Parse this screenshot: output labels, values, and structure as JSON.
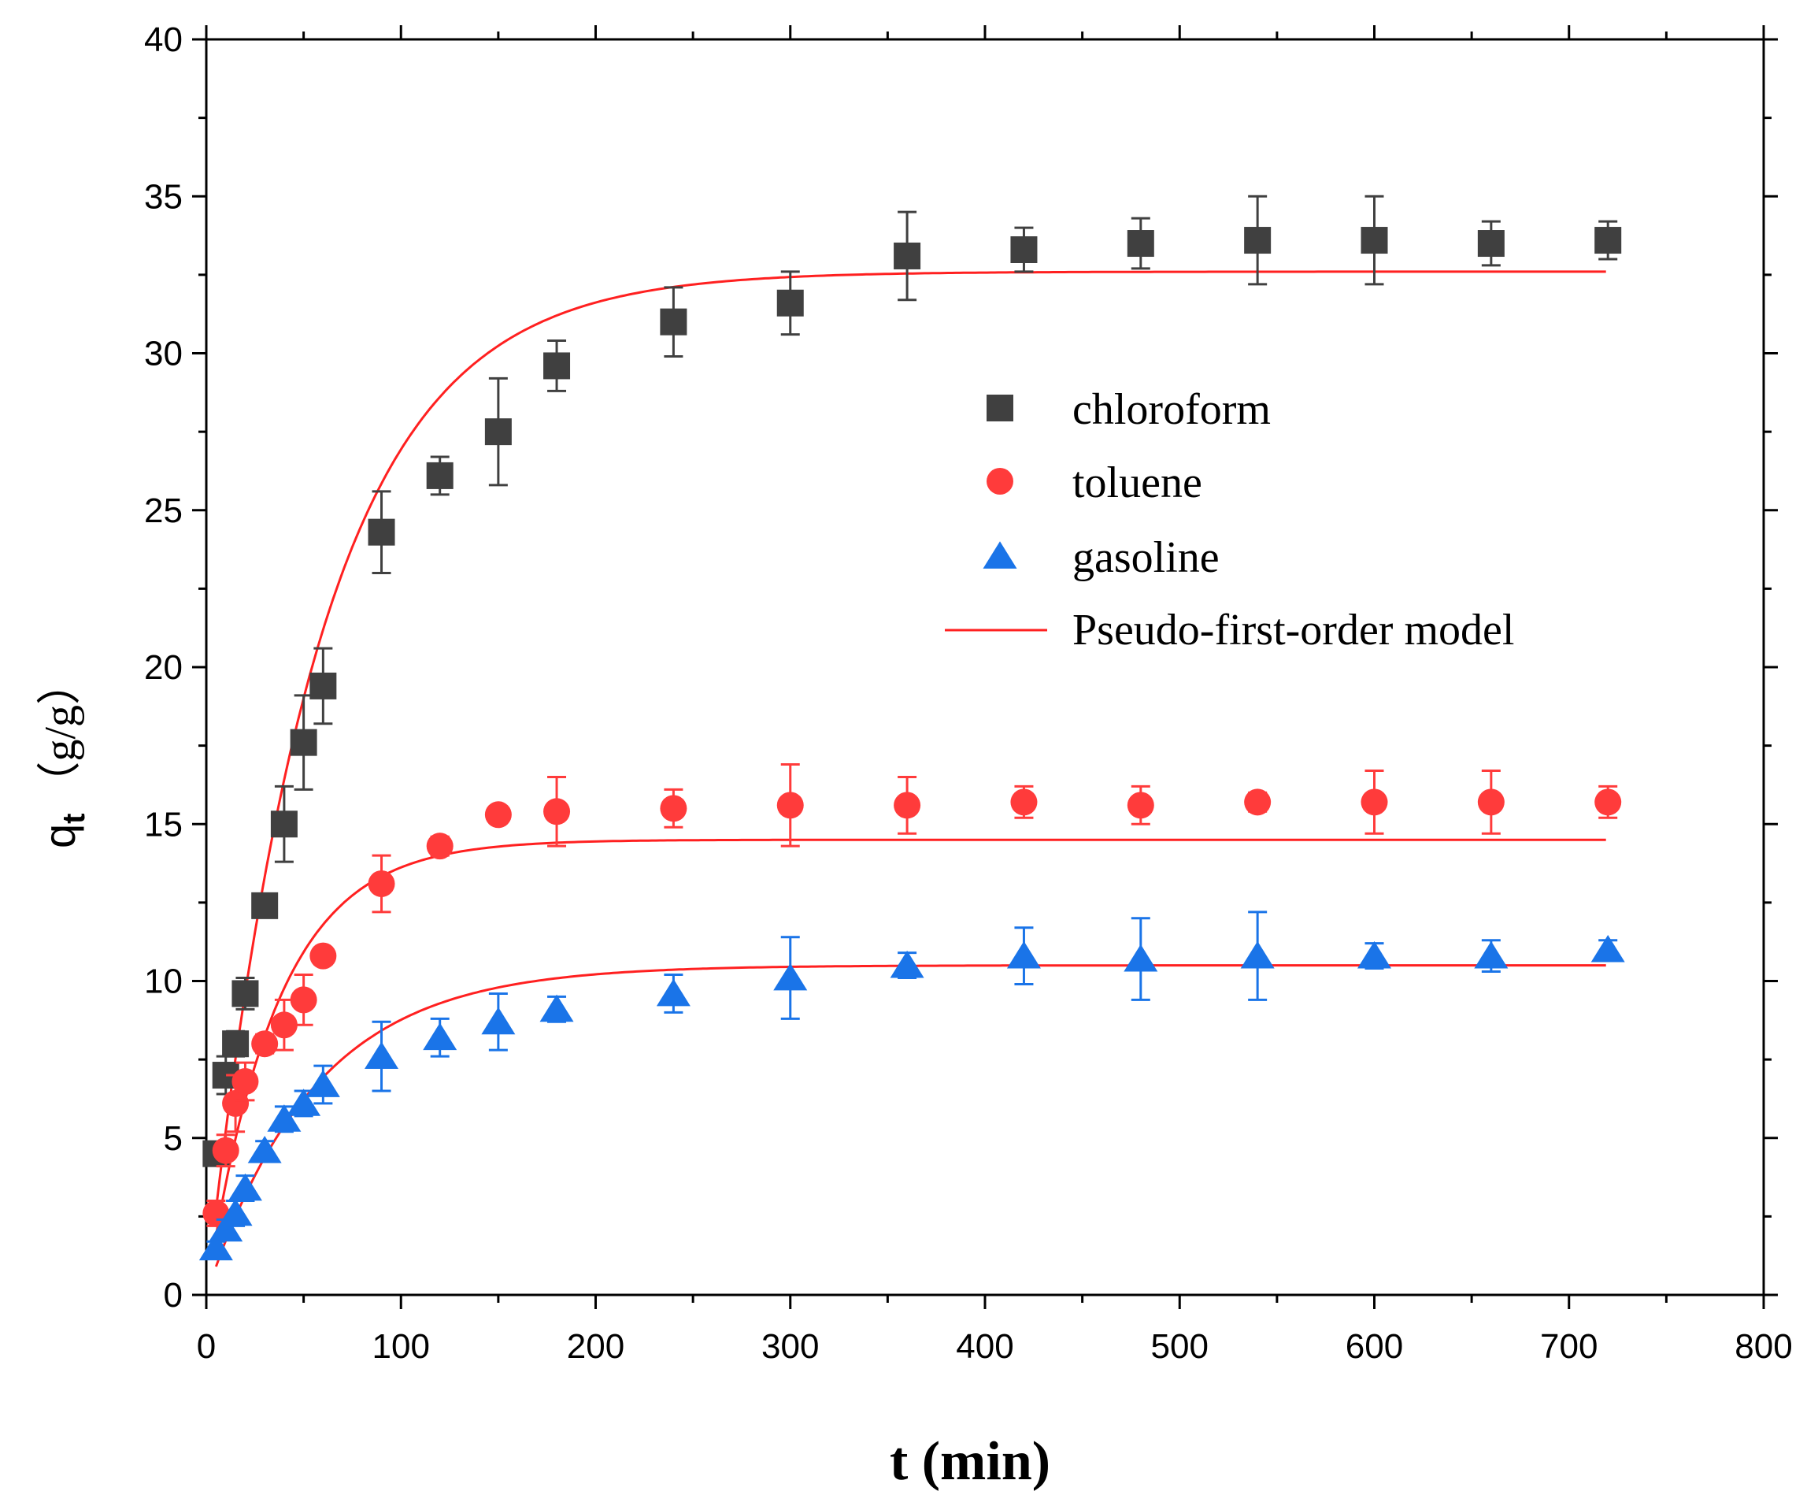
{
  "chart_data": {
    "type": "scatter",
    "xlabel": "t (min)",
    "ylabel": {
      "main": "q",
      "sub": "t",
      "unit": "（g/g）"
    },
    "xlim": [
      0,
      800
    ],
    "ylim": [
      0,
      40
    ],
    "x_ticks": [
      "0",
      "100",
      "200",
      "300",
      "400",
      "500",
      "600",
      "700",
      "800"
    ],
    "y_ticks": [
      "0",
      "5",
      "10",
      "15",
      "20",
      "25",
      "30",
      "35",
      "40"
    ],
    "grid": false,
    "legend_position": "right-center",
    "series": [
      {
        "name": "chloroform",
        "marker": "square",
        "color": "#404040",
        "x": [
          5,
          10,
          15,
          20,
          30,
          40,
          50,
          60,
          90,
          120,
          150,
          180,
          240,
          300,
          360,
          420,
          480,
          540,
          600,
          660,
          720
        ],
        "y": [
          4.5,
          7.0,
          8.0,
          9.6,
          12.4,
          15.0,
          17.6,
          19.4,
          24.3,
          26.1,
          27.5,
          29.6,
          31.0,
          31.6,
          33.1,
          33.3,
          33.5,
          33.6,
          33.6,
          33.5,
          33.6
        ],
        "err": [
          0.3,
          0.6,
          0.4,
          0.5,
          0.3,
          1.2,
          1.5,
          1.2,
          1.3,
          0.6,
          1.7,
          0.8,
          1.1,
          1.0,
          1.4,
          0.7,
          0.8,
          1.4,
          1.4,
          0.7,
          0.6
        ]
      },
      {
        "name": "toluene",
        "marker": "circle",
        "color": "#ff3b3b",
        "x": [
          5,
          10,
          15,
          20,
          30,
          40,
          50,
          60,
          90,
          120,
          150,
          180,
          240,
          300,
          360,
          420,
          480,
          540,
          600,
          660,
          720
        ],
        "y": [
          2.6,
          4.6,
          6.1,
          6.8,
          8.0,
          8.6,
          9.4,
          10.8,
          13.1,
          14.3,
          15.3,
          15.4,
          15.5,
          15.6,
          15.6,
          15.7,
          15.6,
          15.7,
          15.7,
          15.7,
          15.7
        ],
        "err": [
          0.4,
          0.5,
          0.9,
          0.6,
          0.3,
          0.8,
          0.8,
          0.2,
          0.9,
          0.3,
          0.2,
          1.1,
          0.6,
          1.3,
          0.9,
          0.5,
          0.6,
          0.3,
          1.0,
          1.0,
          0.5
        ]
      },
      {
        "name": "gasoline",
        "marker": "triangle",
        "color": "#1a74e8",
        "x": [
          5,
          10,
          15,
          20,
          30,
          40,
          50,
          60,
          90,
          120,
          150,
          180,
          240,
          300,
          360,
          420,
          480,
          540,
          600,
          660,
          720
        ],
        "y": [
          1.5,
          2.1,
          2.6,
          3.4,
          4.6,
          5.6,
          6.1,
          6.7,
          7.6,
          8.2,
          8.7,
          9.1,
          9.6,
          10.1,
          10.5,
          10.8,
          10.7,
          10.8,
          10.8,
          10.8,
          11.0
        ],
        "err": [
          0.2,
          0.3,
          0.4,
          0.4,
          0.3,
          0.4,
          0.4,
          0.6,
          1.1,
          0.6,
          0.9,
          0.4,
          0.6,
          1.3,
          0.4,
          0.9,
          1.3,
          1.4,
          0.4,
          0.5,
          0.3
        ]
      }
    ],
    "model": {
      "name": "Pseudo-first-order model",
      "color": "#ff2020",
      "curves": [
        {
          "qe": 32.6,
          "k1": 0.0175
        },
        {
          "qe": 14.5,
          "k1": 0.028
        },
        {
          "qe": 10.5,
          "k1": 0.018
        }
      ],
      "t_range": [
        5,
        720
      ]
    }
  }
}
